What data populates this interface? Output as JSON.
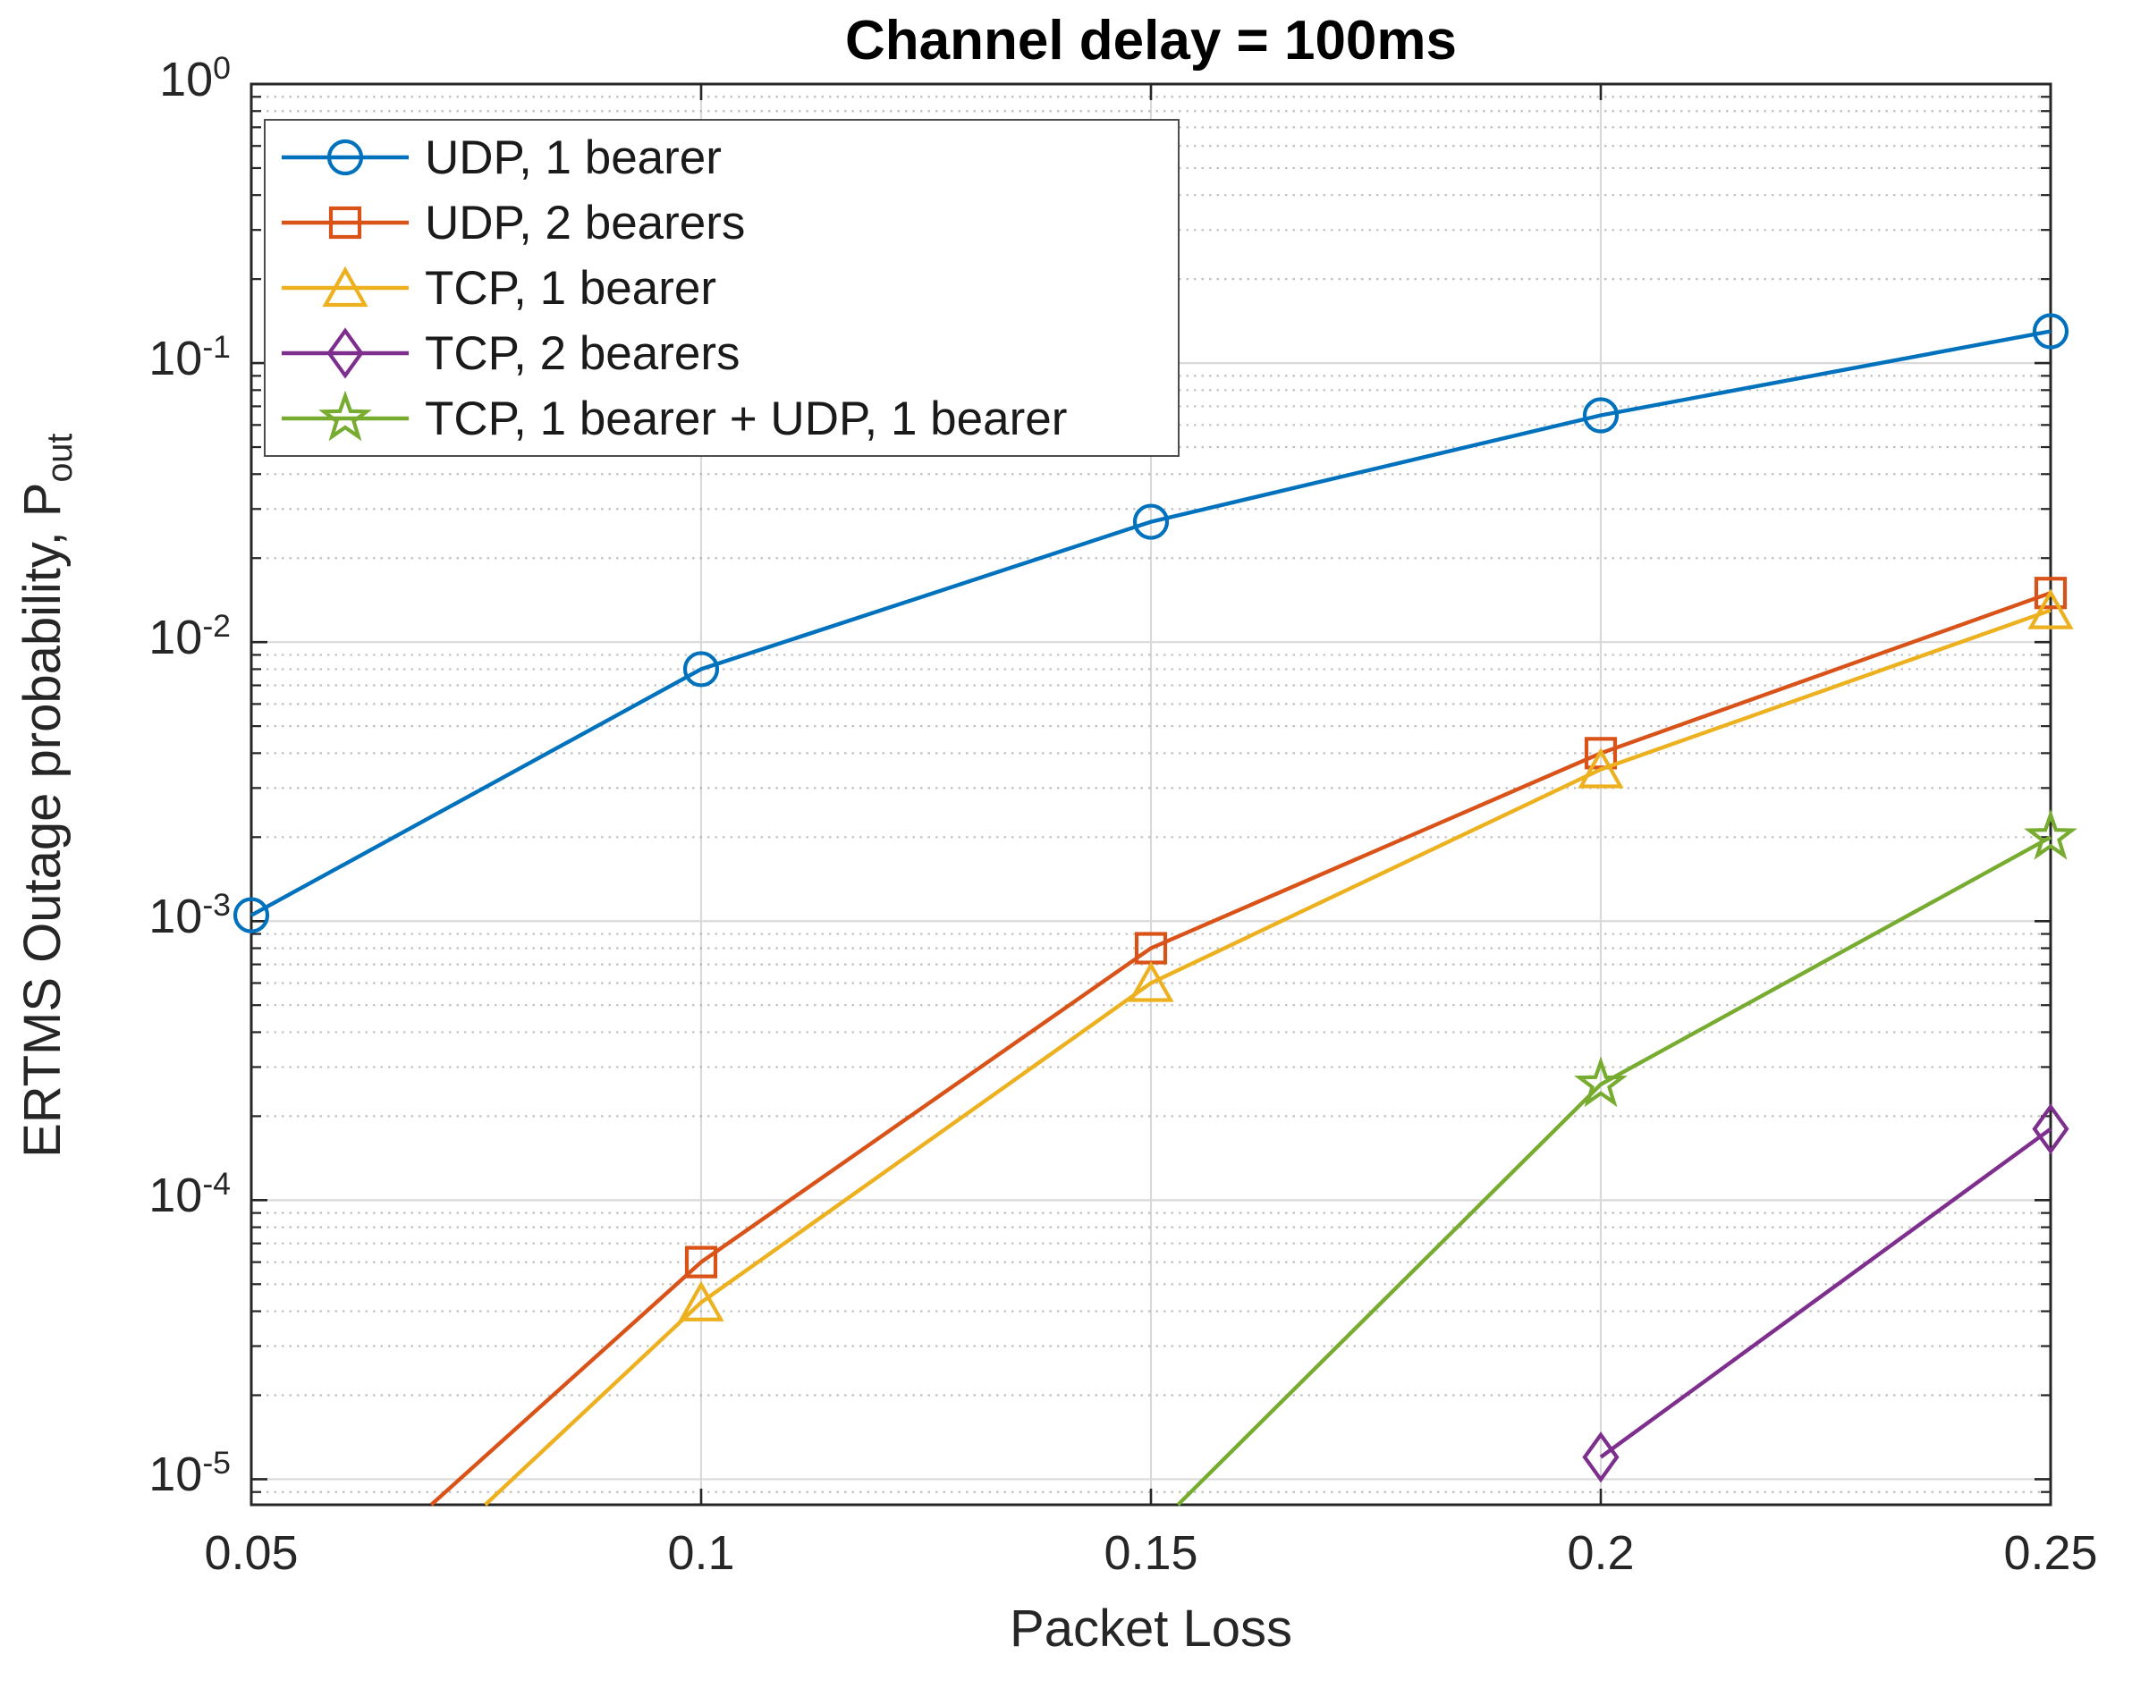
{
  "title": "Channel delay = 100ms",
  "axes": {
    "x_label": "Packet Loss",
    "y_label_prefix": "ERTMS Outage probability, P",
    "y_label_subscript": "out"
  },
  "chart_data": {
    "type": "line",
    "title": "Channel delay = 100ms",
    "xlabel": "Packet Loss",
    "ylabel": "ERTMS Outage probability, P_out",
    "yscale": "log",
    "xlim": [
      0.05,
      0.25
    ],
    "ylim": [
      8.1e-06,
      1
    ],
    "x_ticks": [
      0.05,
      0.1,
      0.15,
      0.2,
      0.25
    ],
    "x_tick_labels": [
      "0.05",
      "0.1",
      "0.15",
      "0.2",
      "0.25"
    ],
    "y_tick_exponents": [
      0,
      -1,
      -2,
      -3,
      -4,
      -5
    ],
    "grid": {
      "major": "solid",
      "minor": "dotted"
    },
    "legend_position": "top-left",
    "legend_order": [
      "UDP, 1 bearer",
      "UDP, 2 bearers",
      "TCP, 1 bearer",
      "TCP, 2 bearers",
      "TCP, 1 bearer + UDP, 1 bearer"
    ],
    "series": [
      {
        "name": "UDP, 1 bearer",
        "color": "#0072BD",
        "marker": "circle",
        "x": [
          0.05,
          0.1,
          0.15,
          0.2,
          0.25
        ],
        "y": [
          0.00105,
          0.008,
          0.027,
          0.065,
          0.13
        ]
      },
      {
        "name": "UDP, 2 bearers",
        "color": "#D95319",
        "marker": "square",
        "x": [
          0.1,
          0.15,
          0.2,
          0.25
        ],
        "y": [
          6e-05,
          0.0008,
          0.004,
          0.015
        ],
        "line_enters_from_bottom_at_x": 0.07
      },
      {
        "name": "TCP, 1 bearer",
        "color": "#EDB120",
        "marker": "triangle",
        "x": [
          0.1,
          0.15,
          0.2,
          0.25
        ],
        "y": [
          4.3e-05,
          0.0006,
          0.0035,
          0.013
        ],
        "line_enters_from_bottom_at_x": 0.076
      },
      {
        "name": "TCP, 2 bearers",
        "color": "#7E2F8E",
        "marker": "diamond",
        "x": [
          0.2,
          0.25
        ],
        "y": [
          1.2e-05,
          0.00018
        ]
      },
      {
        "name": "TCP, 1 bearer + UDP, 1 bearer",
        "color": "#77AC30",
        "marker": "pentagram",
        "x": [
          0.2,
          0.25
        ],
        "y": [
          0.00026,
          0.002
        ],
        "line_enters_from_bottom_at_x": 0.153
      }
    ]
  },
  "style_colors": {
    "axis": "#262626",
    "major_grid": "#d9d9d9",
    "minor_grid": "#ababab",
    "background": "#ffffff"
  }
}
